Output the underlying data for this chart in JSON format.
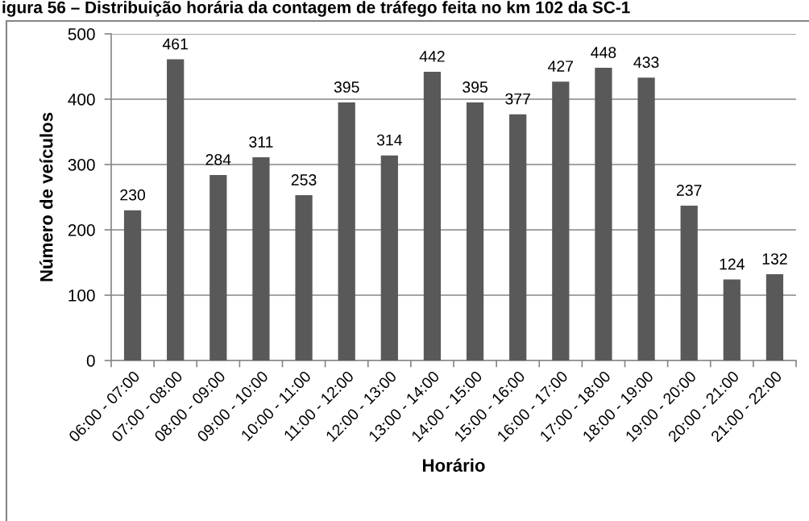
{
  "chart_data": {
    "type": "bar",
    "title": "igura 56 – Distribuição horária da contagem de tráfego feita no km 102 da SC-1",
    "xlabel": "Horário",
    "ylabel": "Número de veículos",
    "categories": [
      "06:00 - 07:00",
      "07:00 - 08:00",
      "08:00 - 09:00",
      "09:00 - 10:00",
      "10:00 - 11:00",
      "11:00 - 12:00",
      "12:00 - 13:00",
      "13:00 - 14:00",
      "14:00 - 15:00",
      "15:00 - 16:00",
      "16:00 - 17:00",
      "17:00 - 18:00",
      "18:00 - 19:00",
      "19:00 - 20:00",
      "20:00 - 21:00",
      "21:00 - 22:00"
    ],
    "values": [
      230,
      461,
      284,
      311,
      253,
      395,
      314,
      442,
      395,
      377,
      427,
      448,
      433,
      237,
      124,
      132
    ],
    "color": "#595959",
    "ylim": [
      0,
      500
    ],
    "yticks": [
      0,
      100,
      200,
      300,
      400,
      500
    ],
    "grid": "y",
    "data_labels": true,
    "legend": false
  }
}
